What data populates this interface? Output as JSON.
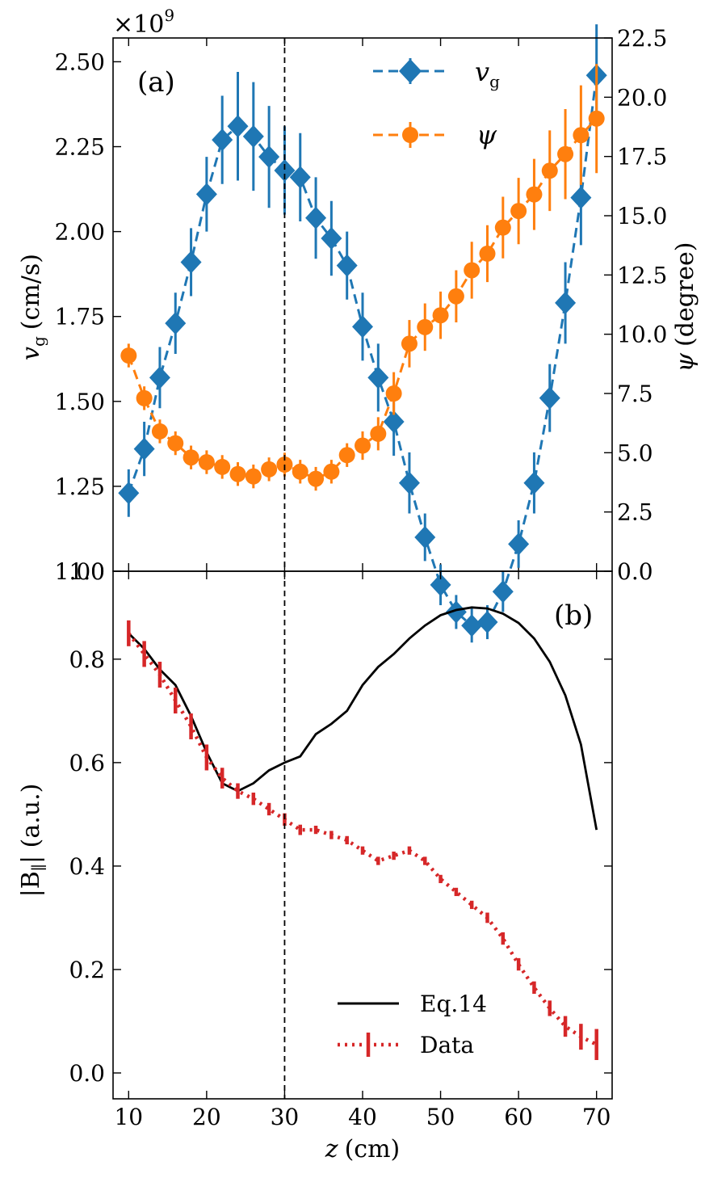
{
  "chart_data": [
    {
      "panel": "a",
      "type": "line",
      "panel_label": "(a)",
      "x_scale_note": "×10^9",
      "x_scale_base": "×10",
      "x_scale_exp": "9",
      "ylabel_left": "v_g (cm/s)",
      "ylabel_left_sym": "v",
      "ylabel_left_sub": "g",
      "ylabel_left_unit": "(cm/s)",
      "ylabel_right": "ψ (degree)",
      "ylabel_right_sym": "ψ",
      "ylabel_right_unit": "(degree)",
      "ylim_left": [
        1.0,
        2.57
      ],
      "ylim_right": [
        0.0,
        22.5
      ],
      "yticks_left": [
        "1.00",
        "1.25",
        "1.50",
        "1.75",
        "2.00",
        "2.25",
        "2.50"
      ],
      "yticks_left_values": [
        1.0,
        1.25,
        1.5,
        1.75,
        2.0,
        2.25,
        2.5
      ],
      "yticks_right": [
        "0.0",
        "2.5",
        "5.0",
        "7.5",
        "10.0",
        "12.5",
        "15.0",
        "17.5",
        "20.0",
        "22.5"
      ],
      "yticks_right_values": [
        0,
        2.5,
        5,
        7.5,
        10,
        12.5,
        15,
        17.5,
        20,
        22.5
      ],
      "bottom_left_tick": "1.0",
      "series": [
        {
          "name": "v_g",
          "legend_sym": "v",
          "legend_sub": "g",
          "color": "#1f77b4",
          "marker": "diamond",
          "axis": "left",
          "x": [
            10,
            12,
            14,
            16,
            18,
            20,
            22,
            24,
            26,
            28,
            30,
            32,
            34,
            36,
            38,
            40,
            42,
            44,
            46,
            48,
            50,
            52,
            54,
            56,
            58,
            60,
            62,
            64,
            66,
            68,
            70
          ],
          "y": [
            1.23,
            1.36,
            1.57,
            1.73,
            1.91,
            2.11,
            2.27,
            2.31,
            2.28,
            2.22,
            2.18,
            2.16,
            2.04,
            1.98,
            1.9,
            1.72,
            1.57,
            1.44,
            1.26,
            1.1,
            0.96,
            0.88,
            0.84,
            0.85,
            0.94,
            1.08,
            1.26,
            1.51,
            1.79,
            2.1,
            2.46
          ],
          "err": [
            0.07,
            0.08,
            0.09,
            0.09,
            0.1,
            0.11,
            0.13,
            0.16,
            0.16,
            0.15,
            0.13,
            0.13,
            0.12,
            0.11,
            0.1,
            0.1,
            0.1,
            0.1,
            0.09,
            0.07,
            0.06,
            0.05,
            0.05,
            0.05,
            0.06,
            0.07,
            0.09,
            0.1,
            0.12,
            0.14,
            0.15
          ]
        },
        {
          "name": "ψ",
          "legend_sym": "ψ",
          "color": "#ff7f0e",
          "marker": "circle",
          "axis": "right",
          "x": [
            10,
            12,
            14,
            16,
            18,
            20,
            22,
            24,
            26,
            28,
            30,
            32,
            34,
            36,
            38,
            40,
            42,
            44,
            46,
            48,
            50,
            52,
            54,
            56,
            58,
            60,
            62,
            64,
            66,
            68,
            70
          ],
          "y": [
            9.1,
            7.3,
            5.9,
            5.4,
            4.8,
            4.6,
            4.4,
            4.1,
            4.0,
            4.3,
            4.5,
            4.2,
            3.9,
            4.2,
            4.9,
            5.3,
            5.8,
            7.5,
            9.6,
            10.3,
            10.8,
            11.6,
            12.7,
            13.4,
            14.5,
            15.2,
            15.9,
            16.9,
            17.6,
            18.4,
            19.1
          ],
          "err": [
            0.5,
            0.5,
            0.5,
            0.5,
            0.5,
            0.5,
            0.5,
            0.5,
            0.5,
            0.5,
            0.5,
            0.5,
            0.5,
            0.5,
            0.5,
            0.6,
            0.7,
            0.9,
            1.0,
            1.0,
            1.0,
            1.1,
            1.2,
            1.2,
            1.3,
            1.4,
            1.5,
            1.7,
            1.9,
            2.1,
            2.3
          ]
        }
      ]
    },
    {
      "panel": "b",
      "type": "line",
      "panel_label": "(b)",
      "xlabel": "z (cm)",
      "xlabel_sym": "z",
      "xlabel_unit": "(cm)",
      "ylabel": "|B∥| (a.u.)",
      "ylabel_left_part": "|B",
      "ylabel_sub": "∥",
      "ylabel_right_part": "| (a.u.)",
      "xlim": [
        8,
        72
      ],
      "ylim": [
        -0.05,
        0.97
      ],
      "xticks": [
        "10",
        "20",
        "30",
        "40",
        "50",
        "60",
        "70"
      ],
      "xticks_values": [
        10,
        20,
        30,
        40,
        50,
        60,
        70
      ],
      "yticks": [
        "0.0",
        "0.2",
        "0.4",
        "0.6",
        "0.8"
      ],
      "yticks_values": [
        0.0,
        0.2,
        0.4,
        0.6,
        0.8
      ],
      "vline_x": 30,
      "series": [
        {
          "name": "Eq.14",
          "color": "#000000",
          "style": "solid",
          "x": [
            10,
            12,
            14,
            16,
            18,
            20,
            22,
            24,
            26,
            28,
            30,
            32,
            34,
            36,
            38,
            40,
            42,
            44,
            46,
            48,
            50,
            52,
            54,
            56,
            58,
            60,
            62,
            64,
            66,
            68,
            70
          ],
          "y": [
            0.85,
            0.82,
            0.78,
            0.75,
            0.69,
            0.62,
            0.56,
            0.545,
            0.56,
            0.585,
            0.6,
            0.612,
            0.655,
            0.675,
            0.7,
            0.75,
            0.785,
            0.81,
            0.84,
            0.865,
            0.885,
            0.895,
            0.9,
            0.898,
            0.888,
            0.87,
            0.84,
            0.795,
            0.73,
            0.635,
            0.47
          ]
        },
        {
          "name": "Data",
          "color": "#d62728",
          "style": "dotted",
          "x": [
            10,
            12,
            14,
            16,
            18,
            20,
            22,
            24,
            26,
            28,
            30,
            32,
            34,
            36,
            38,
            40,
            42,
            44,
            46,
            48,
            50,
            52,
            54,
            56,
            58,
            60,
            62,
            64,
            66,
            68,
            70
          ],
          "y": [
            0.85,
            0.81,
            0.77,
            0.72,
            0.67,
            0.61,
            0.57,
            0.545,
            0.53,
            0.51,
            0.49,
            0.47,
            0.47,
            0.46,
            0.45,
            0.43,
            0.41,
            0.42,
            0.43,
            0.41,
            0.375,
            0.35,
            0.325,
            0.3,
            0.26,
            0.21,
            0.165,
            0.125,
            0.09,
            0.07,
            0.055
          ],
          "err": [
            0.025,
            0.025,
            0.025,
            0.025,
            0.025,
            0.025,
            0.02,
            0.015,
            0.012,
            0.012,
            0.012,
            0.01,
            0.008,
            0.008,
            0.008,
            0.008,
            0.008,
            0.008,
            0.008,
            0.008,
            0.008,
            0.008,
            0.008,
            0.01,
            0.012,
            0.012,
            0.012,
            0.015,
            0.02,
            0.025,
            0.03
          ]
        }
      ]
    }
  ]
}
